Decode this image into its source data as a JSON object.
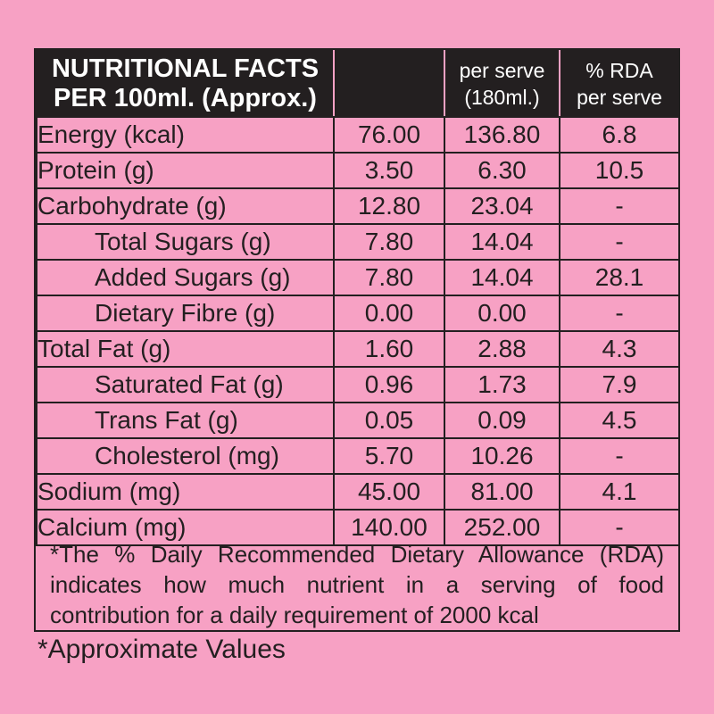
{
  "header": {
    "title_line1": "NUTRITIONAL FACTS",
    "title_line2": "PER 100ml. (Approx.)",
    "col_per_serve_line1": "per serve",
    "col_per_serve_line2": "(180ml.)",
    "col_rda_line1": "% RDA",
    "col_rda_line2": "per serve"
  },
  "rows": [
    {
      "label": "Energy (kcal)",
      "per100": "76.00",
      "serve": "136.80",
      "rda": "6.8"
    },
    {
      "label": "Protein (g)",
      "per100": "3.50",
      "serve": "6.30",
      "rda": "10.5"
    },
    {
      "label": "Carbohydrate (g)",
      "per100": "12.80",
      "serve": "23.04",
      "rda": "-"
    },
    {
      "label": "Total Sugars (g)",
      "per100": "7.80",
      "serve": "14.04",
      "rda": "-"
    },
    {
      "label": "Added Sugars (g)",
      "per100": "7.80",
      "serve": "14.04",
      "rda": "28.1"
    },
    {
      "label": "Dietary Fibre (g)",
      "per100": "0.00",
      "serve": "0.00",
      "rda": "-"
    },
    {
      "label": "Total Fat (g)",
      "per100": "1.60",
      "serve": "2.88",
      "rda": "4.3"
    },
    {
      "label": "Saturated Fat (g)",
      "per100": "0.96",
      "serve": "1.73",
      "rda": "7.9"
    },
    {
      "label": "Trans Fat (g)",
      "per100": "0.05",
      "serve": "0.09",
      "rda": "4.5"
    },
    {
      "label": "Cholesterol (mg)",
      "per100": "5.70",
      "serve": "10.26",
      "rda": "-"
    },
    {
      "label": "Sodium (mg)",
      "per100": "45.00",
      "serve": "81.00",
      "rda": "4.1"
    },
    {
      "label": "Calcium (mg)",
      "per100": "140.00",
      "serve": "252.00",
      "rda": "-"
    }
  ],
  "footnote": "*The % Daily Recommended Dietary Allowance (RDA) indicates how much nutrient in a serving of food contribution for a daily requirement of 2000 kcal",
  "approx_note": "*Approximate Values",
  "colors": {
    "background": "#f7a1c4",
    "ink": "#231f20",
    "header_text": "#ffffff"
  }
}
